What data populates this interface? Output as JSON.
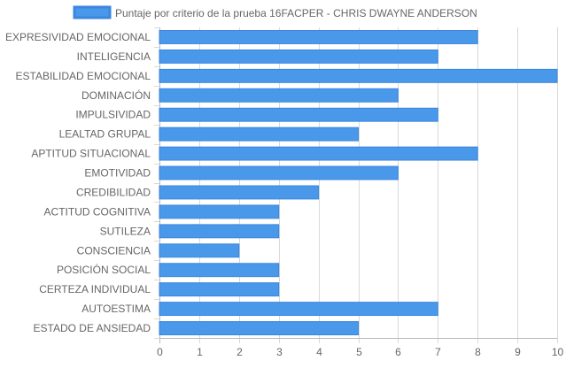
{
  "chart_data": {
    "type": "bar",
    "orientation": "horizontal",
    "title": "",
    "xlabel": "",
    "ylabel": "",
    "xlim": [
      0,
      10
    ],
    "x_ticks": [
      0,
      1,
      2,
      3,
      4,
      5,
      6,
      7,
      8,
      9,
      10
    ],
    "grid": true,
    "legend_position": "top",
    "colors": {
      "bar_fill": "#4a98ea",
      "bar_stroke": "#3b86de",
      "grid": "#d9d9d9",
      "axis": "#b8b8b8",
      "text": "#666666"
    },
    "categories": [
      "EXPRESIVIDAD EMOCIONAL",
      "INTELIGENCIA",
      "ESTABILIDAD EMOCIONAL",
      "DOMINACIÓN",
      "IMPULSIVIDAD",
      "LEALTAD GRUPAL",
      "APTITUD SITUACIONAL",
      "EMOTIVIDAD",
      "CREDIBILIDAD",
      "ACTITUD COGNITIVA",
      "SUTILEZA",
      "CONSCIENCIA",
      "POSICIÓN SOCIAL",
      "CERTEZA INDIVIDUAL",
      "AUTOESTIMA",
      "ESTADO DE ANSIEDAD"
    ],
    "series": [
      {
        "name": "Puntaje por criterio de la prueba 16FACPER - CHRIS DWAYNE ANDERSON",
        "values": [
          8,
          7,
          10,
          6,
          7,
          5,
          8,
          6,
          4,
          3,
          3,
          2,
          3,
          3,
          7,
          5
        ]
      }
    ]
  }
}
